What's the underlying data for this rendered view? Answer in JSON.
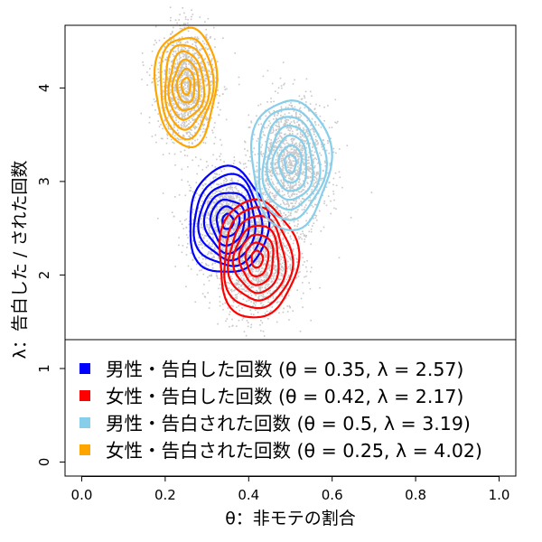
{
  "chart_data": {
    "type": "scatter",
    "title": "",
    "xlabel": "θ：非モテの割合",
    "ylabel": "λ：告白した / された回数",
    "xlim": [
      -0.04,
      1.04
    ],
    "ylim": [
      -0.15,
      4.67
    ],
    "xticks": [
      "0.0",
      "0.2",
      "0.4",
      "0.6",
      "0.8",
      "1.0"
    ],
    "yticks": [
      "0",
      "1",
      "2",
      "3",
      "4"
    ],
    "grid": false,
    "legend_position": "bottom-left",
    "series": [
      {
        "name": "男性・告白した回数 (θ = 0.35, λ = 2.57)",
        "theta": 0.35,
        "lambda": 2.57,
        "color": "#0000ff",
        "spread": [
          0.045,
          0.27
        ]
      },
      {
        "name": "女性・告白した回数 (θ = 0.42, λ = 2.17)",
        "theta": 0.42,
        "lambda": 2.17,
        "color": "#ff0000",
        "spread": [
          0.045,
          0.3
        ]
      },
      {
        "name": "男性・告白された回数 (θ = 0.5, λ = 3.19)",
        "theta": 0.5,
        "lambda": 3.19,
        "color": "#87ceeb",
        "spread": [
          0.045,
          0.33
        ]
      },
      {
        "name": "女性・告白された回数 (θ = 0.25, λ = 4.02)",
        "theta": 0.25,
        "lambda": 4.02,
        "color": "#ffa500",
        "spread": [
          0.035,
          0.3
        ]
      }
    ],
    "point_color": "#c8c8c8"
  }
}
